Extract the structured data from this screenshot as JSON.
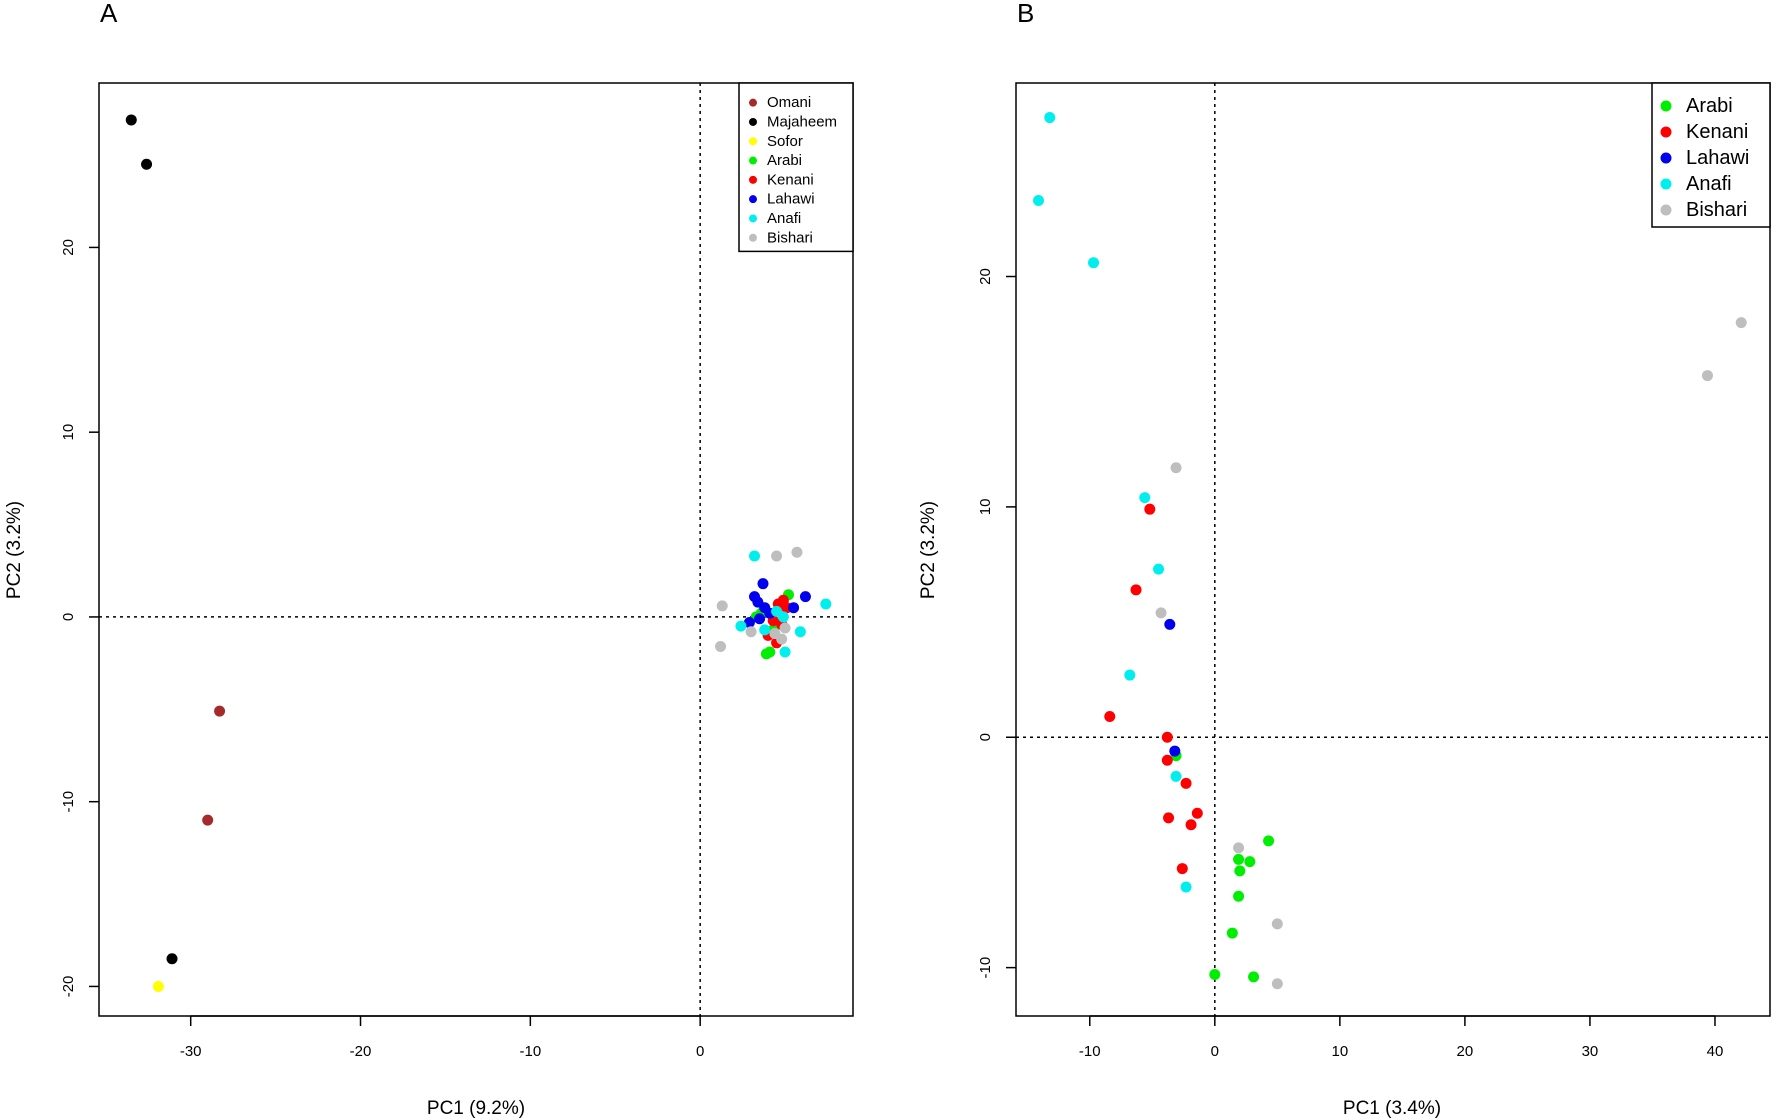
{
  "figure": {
    "panel_labels": [
      "A",
      "B"
    ]
  },
  "colors": {
    "Omani": "#a52a2a",
    "Majaheem": "#000000",
    "Sofor": "#ffff00",
    "Arabi": "#00ee00",
    "Kenani": "#ff0000",
    "Lahawi": "#0000ee",
    "Anafi": "#00eeee",
    "Bishari": "#bebebe"
  },
  "chart_data": [
    {
      "type": "scatter",
      "panel": "A",
      "title": "",
      "xlabel": "PC1 (9.2%)",
      "ylabel": "PC2 (3.2%)",
      "xlim": [
        -35.4,
        9.0
      ],
      "ylim": [
        -21.6,
        28.9
      ],
      "xticks": [
        -30,
        -20,
        -10,
        0
      ],
      "yticks": [
        -20,
        -10,
        0,
        10,
        20
      ],
      "xtick_labels": [
        "-30",
        "-20",
        "-10",
        "0"
      ],
      "ytick_labels": [
        "-20",
        "-10",
        "0",
        "10",
        "20"
      ],
      "reference_lines": {
        "x": 0,
        "y": 0
      },
      "legend": [
        "Omani",
        "Majaheem",
        "Sofor",
        "Arabi",
        "Kenani",
        "Lahawi",
        "Anafi",
        "Bishari"
      ],
      "legend_position": "top-right",
      "series": [
        {
          "name": "Omani",
          "x": [
            -28.3,
            -29.0
          ],
          "y": [
            -5.1,
            -11.0
          ]
        },
        {
          "name": "Majaheem",
          "x": [
            -33.5,
            -32.6,
            -31.1
          ],
          "y": [
            26.9,
            24.5,
            -18.5
          ]
        },
        {
          "name": "Sofor",
          "x": [
            -31.9
          ],
          "y": [
            -20.0
          ]
        },
        {
          "name": "Arabi",
          "x": [
            5.2,
            4.7,
            4.1,
            3.9,
            3.6,
            4.3,
            3.3
          ],
          "y": [
            1.2,
            -0.4,
            -1.9,
            -2.0,
            0.2,
            -0.7,
            0.0
          ]
        },
        {
          "name": "Kenani",
          "x": [
            4.6,
            4.9,
            5.1,
            4.3,
            4.5,
            4.0,
            4.8
          ],
          "y": [
            0.7,
            0.9,
            0.5,
            -0.2,
            -1.4,
            -1.0,
            -0.4
          ]
        },
        {
          "name": "Lahawi",
          "x": [
            3.7,
            3.2,
            3.4,
            2.9,
            3.8,
            5.5,
            6.2,
            3.5,
            4.1
          ],
          "y": [
            1.8,
            1.1,
            0.8,
            -0.3,
            0.5,
            0.5,
            1.1,
            -0.1,
            0.2
          ]
        },
        {
          "name": "Anafi",
          "x": [
            3.2,
            2.4,
            3.8,
            5.0,
            5.9,
            7.4,
            4.5,
            4.9
          ],
          "y": [
            3.3,
            -0.5,
            -0.7,
            -1.9,
            -0.8,
            0.7,
            0.3,
            0.0
          ]
        },
        {
          "name": "Bishari",
          "x": [
            4.5,
            5.7,
            1.3,
            1.2,
            3.0,
            4.8,
            4.4,
            5.0
          ],
          "y": [
            3.3,
            3.5,
            0.6,
            -1.6,
            -0.8,
            -1.2,
            -0.9,
            -0.6
          ]
        }
      ]
    },
    {
      "type": "scatter",
      "panel": "B",
      "title": "",
      "xlabel": "PC1 (3.4%)",
      "ylabel": "PC2 (3.2%)",
      "xlim": [
        -15.9,
        44.4
      ],
      "ylim": [
        -12.1,
        28.4
      ],
      "xticks": [
        -10,
        0,
        10,
        20,
        30,
        40
      ],
      "yticks": [
        -10,
        0,
        10,
        20
      ],
      "xtick_labels": [
        "-10",
        "0",
        "10",
        "20",
        "30",
        "40"
      ],
      "ytick_labels": [
        "-10",
        "0",
        "10",
        "20"
      ],
      "reference_lines": {
        "x": 0,
        "y": 0
      },
      "legend": [
        "Arabi",
        "Kenani",
        "Lahawi",
        "Anafi",
        "Bishari"
      ],
      "legend_position": "top-right",
      "series": [
        {
          "name": "Arabi",
          "x": [
            4.3,
            1.9,
            2.8,
            2.0,
            1.9,
            1.4,
            0.0,
            3.1,
            -3.1
          ],
          "y": [
            -4.5,
            -5.3,
            -5.4,
            -5.8,
            -6.9,
            -8.5,
            -10.3,
            -10.4,
            -0.8
          ]
        },
        {
          "name": "Kenani",
          "x": [
            -5.2,
            -6.3,
            -8.4,
            -3.8,
            -3.8,
            -2.3,
            -3.7,
            -1.4,
            -1.9,
            -2.6
          ],
          "y": [
            9.9,
            6.4,
            0.9,
            0.0,
            -1.0,
            -2.0,
            -3.5,
            -3.3,
            -3.8,
            -5.7
          ]
        },
        {
          "name": "Lahawi",
          "x": [
            -3.6,
            -3.2
          ],
          "y": [
            4.9,
            -0.6
          ]
        },
        {
          "name": "Anafi",
          "x": [
            -13.2,
            -14.1,
            -9.7,
            -5.6,
            -4.5,
            -6.8,
            -3.1,
            -2.3
          ],
          "y": [
            26.9,
            23.3,
            20.6,
            10.4,
            7.3,
            2.7,
            -1.7,
            -6.5
          ]
        },
        {
          "name": "Bishari",
          "x": [
            -3.1,
            -4.3,
            1.9,
            5.0,
            5.0,
            39.4,
            42.1
          ],
          "y": [
            11.7,
            5.4,
            -4.8,
            -8.1,
            -10.7,
            15.7,
            18.0
          ]
        }
      ]
    }
  ]
}
